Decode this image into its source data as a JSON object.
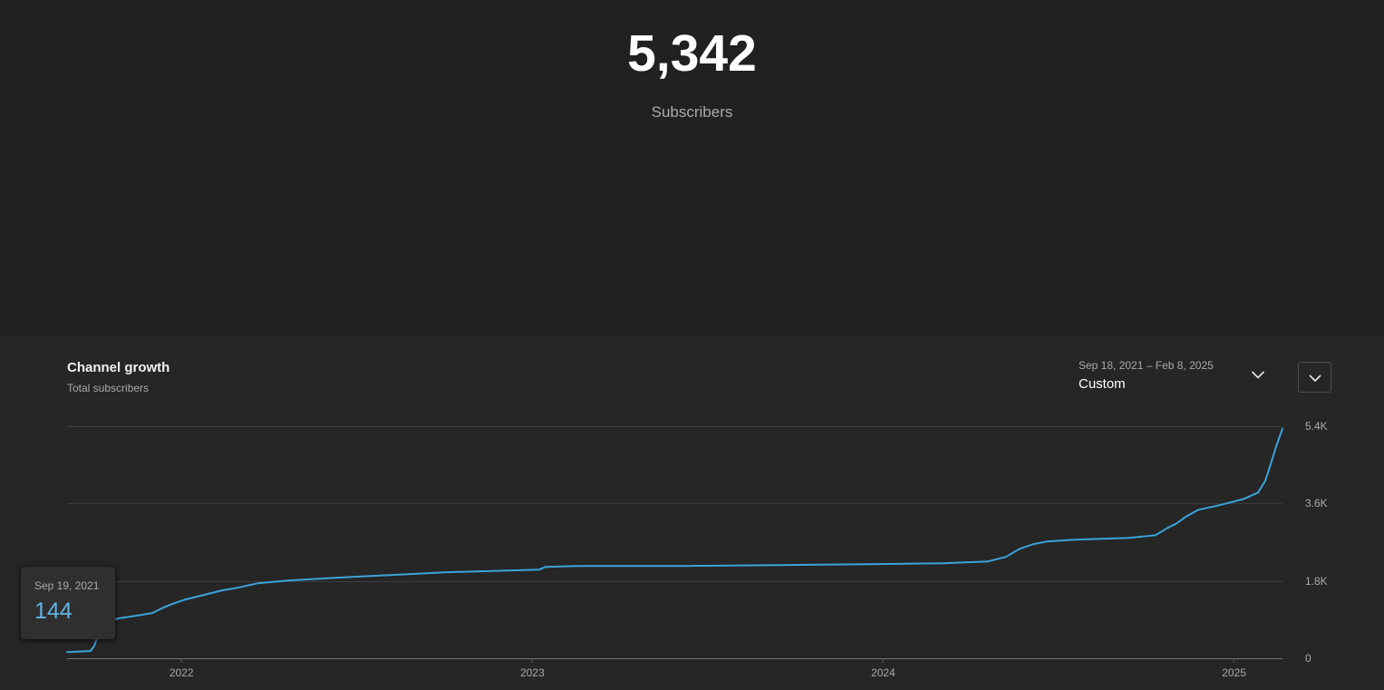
{
  "hero": {
    "count": "5,342",
    "label": "Subscribers"
  },
  "card": {
    "title": "Channel growth",
    "subtitle": "Total subscribers",
    "date_range": "Sep 18, 2021 – Feb 8, 2025",
    "range_mode": "Custom"
  },
  "tooltip": {
    "date": "Sep 19, 2021",
    "value": "144"
  },
  "icons": {
    "range_picker": "chevron-down-icon",
    "collapse_button": "chevron-down-icon"
  },
  "colors": {
    "background_top": "#212121",
    "background_card": "#262626",
    "accent_line": "#3ba4da",
    "tooltip_value": "#62b3e2",
    "gridline": "#3d3d3d",
    "axis_line": "#757575",
    "muted_text": "#aaaaaa"
  },
  "chart_data": {
    "type": "line",
    "title": "Channel growth",
    "series_name": "Total subscribers",
    "grid": true,
    "legend": false,
    "xlim": [
      2021.674,
      2025.138
    ],
    "ylim": [
      0,
      5400
    ],
    "y_ticks": [
      "5.4K",
      "3.6K",
      "1.8K",
      "0"
    ],
    "x_ticks": [
      {
        "label": "2022",
        "year": 2022
      },
      {
        "label": "2023",
        "year": 2023
      },
      {
        "label": "2024",
        "year": 2024
      },
      {
        "label": "2025",
        "year": 2025
      }
    ],
    "points": [
      [
        2021.674,
        144
      ],
      [
        2021.741,
        168
      ],
      [
        2021.752,
        295
      ],
      [
        2021.762,
        547
      ],
      [
        2021.772,
        758
      ],
      [
        2021.788,
        863
      ],
      [
        2021.819,
        926
      ],
      [
        2021.87,
        989
      ],
      [
        2021.917,
        1053
      ],
      [
        2021.943,
        1158
      ],
      [
        2021.974,
        1263
      ],
      [
        2022.012,
        1368
      ],
      [
        2022.064,
        1474
      ],
      [
        2022.116,
        1579
      ],
      [
        2022.16,
        1642
      ],
      [
        2022.219,
        1747
      ],
      [
        2022.309,
        1811
      ],
      [
        2022.439,
        1874
      ],
      [
        2022.594,
        1937
      ],
      [
        2022.749,
        2000
      ],
      [
        2022.929,
        2042
      ],
      [
        2023.02,
        2063
      ],
      [
        2023.038,
        2126
      ],
      [
        2023.136,
        2147
      ],
      [
        2023.446,
        2147
      ],
      [
        2023.704,
        2168
      ],
      [
        2023.963,
        2189
      ],
      [
        2024.169,
        2211
      ],
      [
        2024.298,
        2253
      ],
      [
        2024.35,
        2358
      ],
      [
        2024.389,
        2547
      ],
      [
        2024.428,
        2653
      ],
      [
        2024.466,
        2716
      ],
      [
        2024.544,
        2758
      ],
      [
        2024.699,
        2800
      ],
      [
        2024.776,
        2863
      ],
      [
        2024.81,
        3032
      ],
      [
        2024.836,
        3137
      ],
      [
        2024.861,
        3284
      ],
      [
        2024.898,
        3453
      ],
      [
        2024.957,
        3558
      ],
      [
        2025.027,
        3705
      ],
      [
        2025.068,
        3853
      ],
      [
        2025.089,
        4126
      ],
      [
        2025.104,
        4505
      ],
      [
        2025.12,
        4926
      ],
      [
        2025.138,
        5342
      ]
    ]
  }
}
